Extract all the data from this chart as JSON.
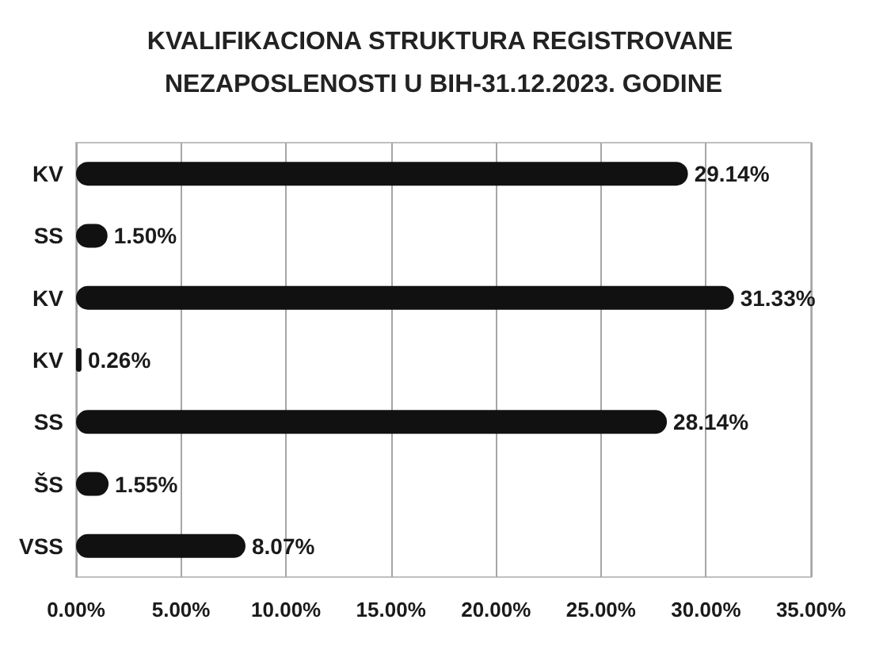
{
  "chart_data": {
    "type": "bar",
    "orientation": "horizontal",
    "title": "KVALIFIKACIONA STRUKTURA REGISTROVANE NEZAPOSLENOSTI U BIH-31.12.2023. GODINE",
    "categories": [
      "KV",
      "SS",
      "KV",
      "KV",
      "SS",
      "ŠS",
      "VSS"
    ],
    "values": [
      29.14,
      1.5,
      31.33,
      0.26,
      28.14,
      1.55,
      8.07
    ],
    "value_labels": [
      "29.14%",
      "1.50%",
      "31.33%",
      "0.26%",
      "28.14%",
      "1.55%",
      "8.07%"
    ],
    "color": "#111111",
    "xlim": [
      0,
      35
    ],
    "xticks": [
      {
        "value": 0,
        "label": "0.00%"
      },
      {
        "value": 5,
        "label": "5.00%"
      },
      {
        "value": 10,
        "label": "10.00%"
      },
      {
        "value": 15,
        "label": "15.00%"
      },
      {
        "value": 20,
        "label": "20.00%"
      },
      {
        "value": 25,
        "label": "25.00%"
      },
      {
        "value": 30,
        "label": "30.00%"
      },
      {
        "value": 35,
        "label": "35.00%"
      }
    ],
    "grid": "x"
  }
}
